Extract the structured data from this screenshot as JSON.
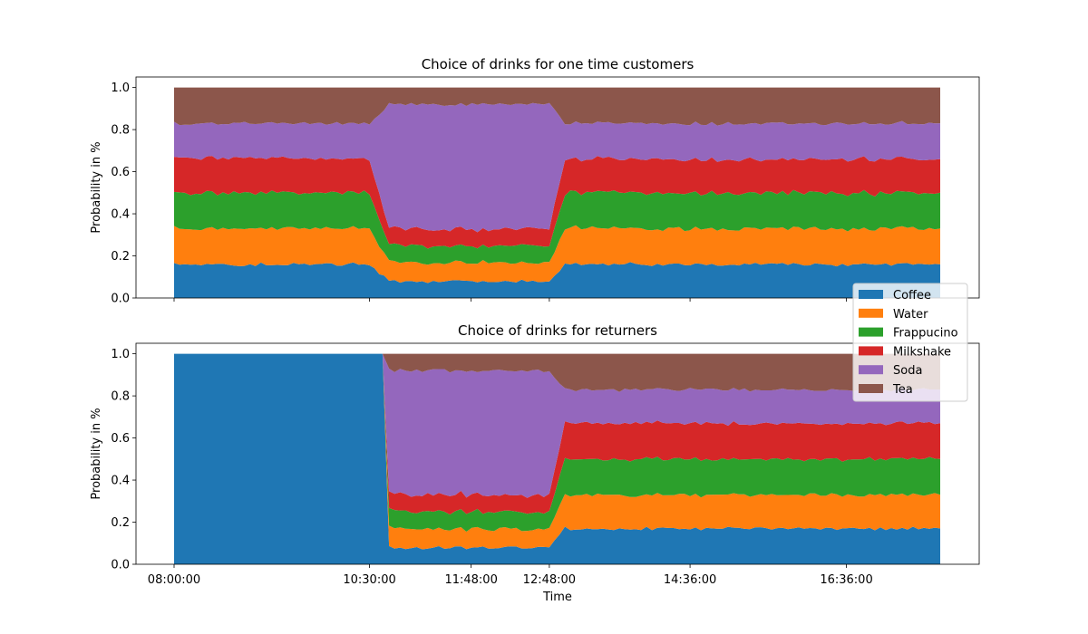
{
  "chart_data": [
    {
      "type": "area",
      "stacked": true,
      "title": "Choice of drinks for one time customers",
      "xlabel": "",
      "ylabel": "Probability in %",
      "ylim": [
        0,
        1.05
      ],
      "yticks": [
        "0.0",
        "0.2",
        "0.4",
        "0.6",
        "0.8",
        "1.0"
      ],
      "x_segments": [
        {
          "x": "08:00:00",
          "Coffee": 0.16,
          "Water": 0.17,
          "Frappucino": 0.17,
          "Milkshake": 0.17,
          "Soda": 0.16,
          "Tea": 0.17
        },
        {
          "x": "10:30:00",
          "Coffee": 0.16,
          "Water": 0.17,
          "Frappucino": 0.17,
          "Milkshake": 0.16,
          "Soda": 0.17,
          "Tea": 0.17
        },
        {
          "x": "10:45:00",
          "Coffee": 0.08,
          "Water": 0.09,
          "Frappucino": 0.08,
          "Milkshake": 0.08,
          "Soda": 0.59,
          "Tea": 0.08
        },
        {
          "x": "12:48:00",
          "Coffee": 0.08,
          "Water": 0.09,
          "Frappucino": 0.08,
          "Milkshake": 0.08,
          "Soda": 0.59,
          "Tea": 0.08
        },
        {
          "x": "13:00:00",
          "Coffee": 0.16,
          "Water": 0.17,
          "Frappucino": 0.17,
          "Milkshake": 0.16,
          "Soda": 0.17,
          "Tea": 0.17
        },
        {
          "x": "17:48:00",
          "Coffee": 0.16,
          "Water": 0.17,
          "Frappucino": 0.17,
          "Milkshake": 0.16,
          "Soda": 0.17,
          "Tea": 0.17
        }
      ]
    },
    {
      "type": "area",
      "stacked": true,
      "title": "Choice of drinks for returners",
      "xlabel": "Time",
      "ylabel": "Probability in %",
      "ylim": [
        0,
        1.05
      ],
      "yticks": [
        "0.0",
        "0.2",
        "0.4",
        "0.6",
        "0.8",
        "1.0"
      ],
      "xticks": [
        "08:00:00",
        "10:30:00",
        "11:48:00",
        "12:48:00",
        "14:36:00",
        "16:36:00"
      ],
      "x_segments": [
        {
          "x": "08:00:00",
          "Coffee": 1.0,
          "Water": 0,
          "Frappucino": 0,
          "Milkshake": 0,
          "Soda": 0,
          "Tea": 0
        },
        {
          "x": "10:40:00",
          "Coffee": 1.0,
          "Water": 0,
          "Frappucino": 0,
          "Milkshake": 0,
          "Soda": 0,
          "Tea": 0
        },
        {
          "x": "10:45:00",
          "Coffee": 0.08,
          "Water": 0.09,
          "Frappucino": 0.08,
          "Milkshake": 0.08,
          "Soda": 0.59,
          "Tea": 0.08
        },
        {
          "x": "12:48:00",
          "Coffee": 0.08,
          "Water": 0.09,
          "Frappucino": 0.08,
          "Milkshake": 0.08,
          "Soda": 0.59,
          "Tea": 0.08
        },
        {
          "x": "13:00:00",
          "Coffee": 0.17,
          "Water": 0.16,
          "Frappucino": 0.17,
          "Milkshake": 0.17,
          "Soda": 0.16,
          "Tea": 0.17
        },
        {
          "x": "17:48:00",
          "Coffee": 0.17,
          "Water": 0.16,
          "Frappucino": 0.17,
          "Milkshake": 0.17,
          "Soda": 0.16,
          "Tea": 0.17
        }
      ]
    }
  ],
  "series": [
    {
      "name": "Coffee",
      "color": "#1f77b4"
    },
    {
      "name": "Water",
      "color": "#ff7f0e"
    },
    {
      "name": "Frappucino",
      "color": "#2ca02c"
    },
    {
      "name": "Milkshake",
      "color": "#d62728"
    },
    {
      "name": "Soda",
      "color": "#9467bd"
    },
    {
      "name": "Tea",
      "color": "#8c564b"
    }
  ],
  "legend": {
    "placement": "right, between panels",
    "items": [
      "Coffee",
      "Water",
      "Frappucino",
      "Milkshake",
      "Soda",
      "Tea"
    ]
  }
}
